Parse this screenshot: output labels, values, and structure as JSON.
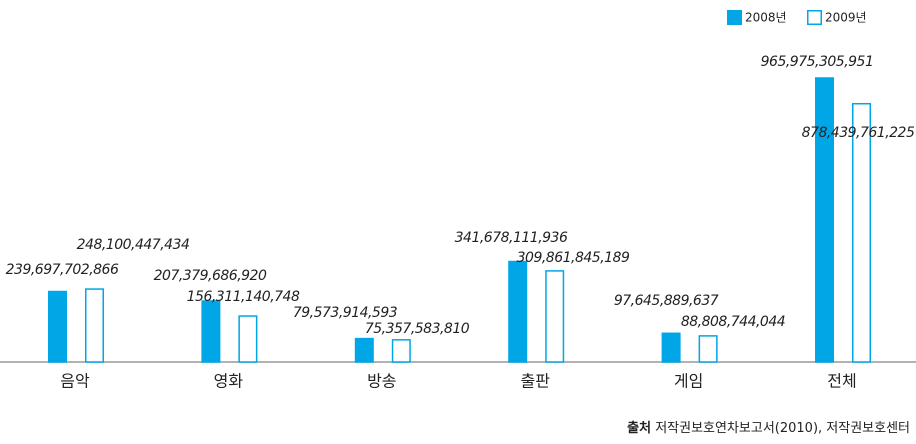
{
  "chart_data": {
    "type": "bar",
    "categories": [
      "음악",
      "영화",
      "방송",
      "출판",
      "게임",
      "전체"
    ],
    "series": [
      {
        "name": "2008년",
        "color": "#00a6e6",
        "values": [
          239697702866,
          207379686920,
          79573914593,
          341678111936,
          97645889637,
          965975305951
        ],
        "value_labels": [
          "239,697,702,866",
          "207,379,686,920",
          "79,573,914,593",
          "341,678,111,936",
          "97,645,889,637",
          "965,975,305,951"
        ]
      },
      {
        "name": "2009년",
        "color": "#ffffff",
        "values": [
          248100447434,
          156311140748,
          75357583810,
          309861845189,
          88808744044,
          878439761225
        ],
        "value_labels": [
          "248,100,447,434",
          "156,311,140,748",
          "75,357,583,810",
          "309,861,845,189",
          "88,808,744,044",
          "878,439,761,225"
        ]
      }
    ],
    "legend": "top-right",
    "source_label": "출처",
    "source": "저작권보호연차보고서(2010), 저작권보호센터"
  }
}
